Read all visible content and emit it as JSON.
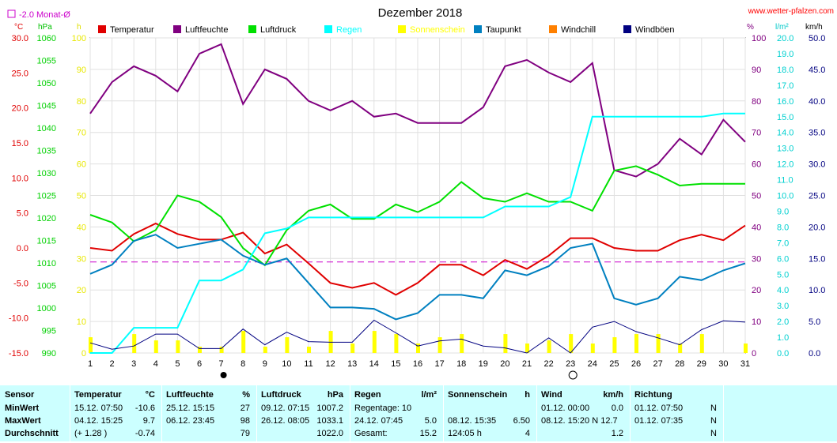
{
  "header": {
    "title": "Dezember 2018",
    "site": "www.wetter-pfalzen.com",
    "avg_marker": "-2.0 Monat-Ø",
    "units_left": [
      "°C",
      "hPa",
      "h"
    ],
    "units_right": [
      "%",
      "l/m²",
      "km/h"
    ]
  },
  "legend": [
    {
      "label": "Temperatur",
      "color": "#e00000"
    },
    {
      "label": "Luftfeuchte",
      "color": "#800080"
    },
    {
      "label": "Luftdruck",
      "color": "#00e000"
    },
    {
      "label": "Regen",
      "color": "#00ffff"
    },
    {
      "label": "Sonnenschein",
      "color": "#ffff00"
    },
    {
      "label": "Taupunkt",
      "color": "#0080c0"
    },
    {
      "label": "Windchill",
      "color": "#ff8000"
    },
    {
      "label": "Windböen",
      "color": "#000080"
    }
  ],
  "chart_data": {
    "type": "line",
    "title": "Dezember 2018",
    "x": [
      1,
      2,
      3,
      4,
      5,
      6,
      7,
      8,
      9,
      10,
      11,
      12,
      13,
      14,
      15,
      16,
      17,
      18,
      19,
      20,
      21,
      22,
      23,
      24,
      25,
      26,
      27,
      28,
      29,
      30,
      31
    ],
    "axes": {
      "temperature_c": {
        "ylim": [
          -15,
          30
        ],
        "ticks": [
          "30.0",
          "25.0",
          "20.0",
          "15.0",
          "10.0",
          "5.0",
          "0.0",
          "-5.0",
          "-10.0",
          "-15.0"
        ]
      },
      "pressure_hpa": {
        "ylim": [
          990,
          1060
        ],
        "ticks": [
          "1060",
          "1055",
          "1050",
          "1045",
          "1040",
          "1035",
          "1030",
          "1025",
          "1020",
          "1015",
          "1010",
          "1005",
          "1000",
          "995",
          "990"
        ]
      },
      "sunshine_h": {
        "ylim": [
          0,
          100
        ],
        "ticks": [
          "100",
          "90",
          "80",
          "70",
          "60",
          "50",
          "40",
          "30",
          "20",
          "10",
          "0"
        ]
      },
      "humidity_pct": {
        "ylim": [
          0,
          100
        ],
        "ticks": [
          "100",
          "90",
          "80",
          "70",
          "60",
          "50",
          "40",
          "30",
          "20",
          "10",
          "0"
        ]
      },
      "rain_lm2": {
        "ylim": [
          0,
          20
        ],
        "ticks": [
          "20.0",
          "19.0",
          "18.0",
          "17.0",
          "16.0",
          "15.0",
          "14.0",
          "13.0",
          "12.0",
          "11.0",
          "10.0",
          "9.0",
          "8.0",
          "7.0",
          "6.0",
          "5.0",
          "4.0",
          "3.0",
          "2.0",
          "1.0",
          "0.0"
        ]
      },
      "wind_kmh": {
        "ylim": [
          0,
          50
        ],
        "ticks": [
          "50.0",
          "45.0",
          "40.0",
          "35.0",
          "30.0",
          "25.0",
          "20.0",
          "15.0",
          "10.0",
          "5.0",
          "0.0"
        ]
      }
    },
    "month_avg_temp": -2.0,
    "series": [
      {
        "name": "Temperatur",
        "axis": "temperature_c",
        "color": "#e00000",
        "values": [
          0.0,
          -0.4,
          2.0,
          3.5,
          2.0,
          1.2,
          1.2,
          2.2,
          -0.8,
          0.5,
          -2.2,
          -5.0,
          -5.7,
          -5.0,
          -6.7,
          -5.0,
          -2.4,
          -2.4,
          -3.9,
          -1.7,
          -3.0,
          -1.1,
          1.4,
          1.4,
          0.0,
          -0.4,
          -0.4,
          1.1,
          1.9,
          1.1,
          3.2
        ]
      },
      {
        "name": "Luftfeuchte",
        "axis": "humidity_pct",
        "color": "#800080",
        "values": [
          76,
          86,
          91,
          88,
          83,
          95,
          98,
          79,
          90,
          87,
          80,
          77,
          80,
          75,
          76,
          73,
          73,
          73,
          78,
          91,
          93,
          89,
          86,
          92,
          58,
          56,
          60,
          68,
          63,
          74,
          67
        ]
      },
      {
        "name": "Luftdruck",
        "axis": "pressure_hpa",
        "color": "#00e000",
        "values": [
          1020.7,
          1019.0,
          1014.8,
          1017.3,
          1025.0,
          1023.6,
          1020.2,
          1013.3,
          1009.5,
          1017.3,
          1021.6,
          1023.0,
          1019.8,
          1019.8,
          1023.0,
          1021.3,
          1023.6,
          1028.0,
          1024.4,
          1023.6,
          1025.5,
          1023.6,
          1023.6,
          1021.6,
          1030.5,
          1031.5,
          1029.6,
          1027.2,
          1027.6,
          1027.6,
          1027.6
        ]
      },
      {
        "name": "Regen",
        "axis": "rain_lm2",
        "color": "#00ffff",
        "values": [
          0.0,
          0.0,
          1.6,
          1.6,
          1.6,
          4.6,
          4.6,
          5.3,
          7.6,
          7.9,
          8.6,
          8.6,
          8.6,
          8.6,
          8.6,
          8.6,
          8.6,
          8.6,
          8.6,
          9.3,
          9.3,
          9.3,
          9.9,
          15.0,
          15.0,
          15.0,
          15.0,
          15.0,
          15.0,
          15.2,
          15.2
        ]
      },
      {
        "name": "Sonnenschein",
        "axis": "sunshine_h",
        "color": "#ffff00",
        "values": [
          5,
          0,
          6,
          4,
          4,
          2,
          2,
          7,
          2,
          5,
          2,
          7,
          3,
          7,
          6,
          3,
          5,
          6,
          0,
          6,
          3,
          4,
          6,
          3,
          5,
          6,
          6,
          3,
          6,
          0,
          3
        ]
      },
      {
        "name": "Taupunkt",
        "axis": "temperature_c",
        "color": "#0080c0",
        "values": [
          -3.7,
          -2.4,
          1.0,
          1.9,
          0.0,
          0.6,
          1.2,
          -1.1,
          -2.4,
          -1.5,
          -5.0,
          -8.5,
          -8.5,
          -8.7,
          -10.2,
          -9.3,
          -6.7,
          -6.7,
          -7.2,
          -3.2,
          -3.9,
          -2.6,
          0.0,
          0.6,
          -7.2,
          -8.1,
          -7.2,
          -4.1,
          -4.6,
          -3.2,
          -2.2
        ]
      },
      {
        "name": "Windböen",
        "axis": "wind_kmh",
        "color": "#000080",
        "values": [
          1.6,
          0.6,
          1.1,
          3.0,
          3.0,
          0.7,
          0.7,
          3.8,
          1.3,
          3.3,
          1.8,
          1.7,
          1.7,
          5.2,
          3.2,
          1.1,
          1.9,
          2.2,
          1.1,
          0.8,
          0.0,
          2.4,
          0.0,
          4.1,
          5.0,
          3.4,
          2.4,
          1.3,
          3.7,
          5.1,
          4.9
        ]
      }
    ],
    "moon_phases": [
      {
        "day": 7,
        "phase": "new"
      },
      {
        "day": 23,
        "phase": "full"
      }
    ]
  },
  "table": {
    "sections": [
      {
        "head": "Sensor",
        "unit": "",
        "rows": [
          [
            "MinWert"
          ],
          [
            "MaxWert"
          ],
          [
            "Durchschnitt"
          ]
        ]
      },
      {
        "head": "Temperatur",
        "unit": "°C",
        "rows": [
          [
            "15.12.  07:50",
            "-10.6"
          ],
          [
            "04.12.  15:25",
            "9.7"
          ],
          [
            "(+ 1.28 )",
            "-0.74"
          ]
        ]
      },
      {
        "head": "Luftfeuchte",
        "unit": "%",
        "rows": [
          [
            "25.12.  15:15",
            "27"
          ],
          [
            "06.12.  23:45",
            "98"
          ],
          [
            "",
            "79"
          ]
        ]
      },
      {
        "head": "Luftdruck",
        "unit": "hPa",
        "rows": [
          [
            "09.12.  07:15",
            "1007.2"
          ],
          [
            "26.12.  08:05",
            "1033.1"
          ],
          [
            "",
            "1022.0"
          ]
        ]
      },
      {
        "head": "Regen",
        "unit": "l/m²",
        "rows": [
          [
            "Regentage: 10",
            ""
          ],
          [
            "24.12.  07:45",
            "5.0"
          ],
          [
            "Gesamt:",
            "15.2"
          ]
        ]
      },
      {
        "head": "Sonnenschein",
        "unit": "h",
        "rows": [
          [
            "",
            ""
          ],
          [
            "08.12.  15:35",
            "6.50"
          ],
          [
            "124:05 h",
            "4"
          ]
        ]
      },
      {
        "head": "Wind",
        "unit": "km/h",
        "rows": [
          [
            "01.12.  00:00",
            "0.0"
          ],
          [
            "08.12.  15:20  N 12.7",
            ""
          ],
          [
            "",
            "1.2"
          ]
        ]
      },
      {
        "head": "Richtung",
        "unit": "",
        "rows": [
          [
            "01.12.  07:50",
            "N"
          ],
          [
            "01.12.  07:35",
            "N"
          ],
          [
            "",
            "N"
          ]
        ]
      }
    ]
  }
}
